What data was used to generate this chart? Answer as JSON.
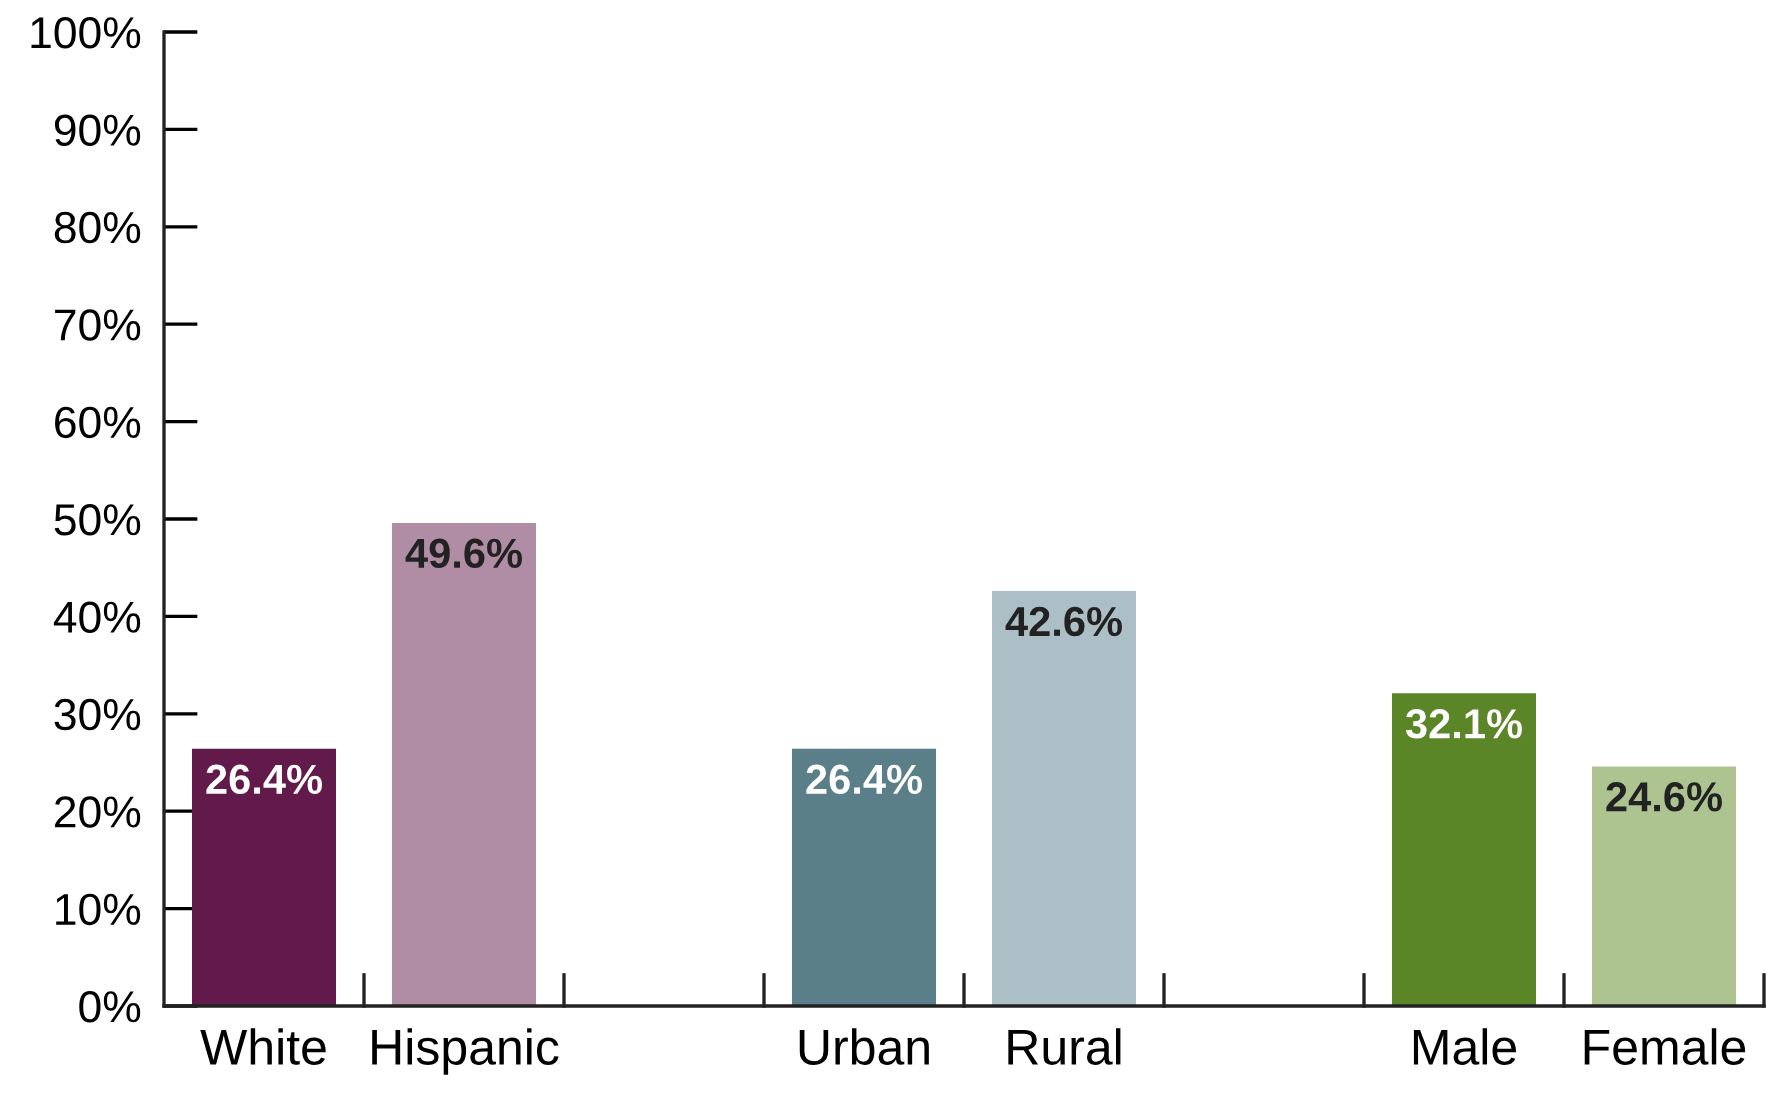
{
  "chart_data": {
    "type": "bar",
    "categories": [
      "White",
      "Hispanic",
      null,
      "Urban",
      "Rural",
      null,
      "Male",
      "Female"
    ],
    "values": [
      26.4,
      49.6,
      null,
      26.4,
      42.6,
      null,
      32.1,
      24.6
    ],
    "colors": [
      "#621a4b",
      "#b18ca5",
      "#ffffff",
      "#5a7f89",
      "#adbfc6",
      "#ffffff",
      "#5b8627",
      "#adc491"
    ],
    "value_labels": [
      "26.4%",
      "49.6%",
      null,
      "26.4%",
      "42.6%",
      null,
      "32.1%",
      "24.6%"
    ],
    "ylim": [
      0,
      100
    ],
    "yticks": [
      {
        "value": 0,
        "label": "0%"
      },
      {
        "value": 10,
        "label": "10%"
      },
      {
        "value": 20,
        "label": "20%"
      },
      {
        "value": 30,
        "label": "30%"
      },
      {
        "value": 40,
        "label": "40%"
      },
      {
        "value": 50,
        "label": "50%"
      },
      {
        "value": 60,
        "label": "60%"
      },
      {
        "value": 70,
        "label": "70%"
      },
      {
        "value": 80,
        "label": "80%"
      },
      {
        "value": 90,
        "label": "90%"
      },
      {
        "value": 100,
        "label": "100%"
      }
    ],
    "grid": false,
    "legend": false
  }
}
